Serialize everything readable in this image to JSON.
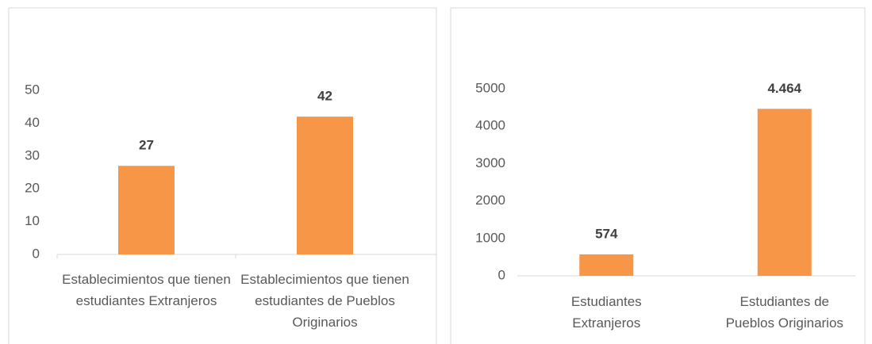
{
  "chart_data": [
    {
      "type": "bar",
      "categories": [
        "Establecimientos que tienen estudiantes Extranjeros",
        "Establecimientos que tienen estudiantes de Pueblos Originarios"
      ],
      "values": [
        27,
        42
      ],
      "color": "#f79646",
      "ylim": [
        0,
        50
      ],
      "yticks": [
        0,
        10,
        20,
        30,
        40,
        50
      ]
    },
    {
      "type": "bar",
      "categories": [
        "Estudiantes Extranjeros",
        "Estudiantes de Pueblos Originarios"
      ],
      "values": [
        574,
        4464
      ],
      "value_labels": [
        "574",
        "4.464"
      ],
      "color": "#f79646",
      "ylim": [
        0,
        5000
      ],
      "yticks": [
        0,
        1000,
        2000,
        3000,
        4000,
        5000
      ]
    }
  ]
}
